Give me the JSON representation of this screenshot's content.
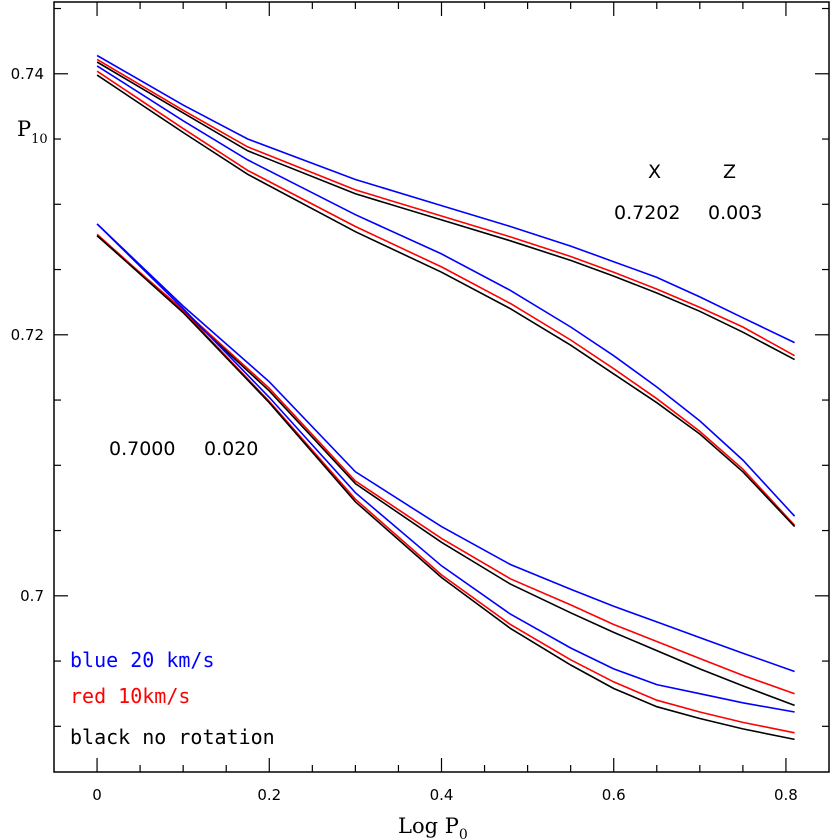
{
  "chart_data": {
    "type": "line",
    "xlabel": "Log P",
    "xlabel_sub": "0",
    "ylabel": "P",
    "ylabel_sub": "10",
    "xlim": [
      -0.05,
      0.85
    ],
    "ylim": [
      0.6865,
      0.7455
    ],
    "x_ticks": [
      "0",
      "0.2",
      "0.4",
      "0.6",
      "0.8"
    ],
    "y_ticks": [
      "0.7",
      "0.72",
      "0.74"
    ],
    "header": {
      "x": "X",
      "z": "Z"
    },
    "group_labels": [
      {
        "x": "0.7202",
        "z": "0.003"
      },
      {
        "x": "0.7000",
        "z": "0.020"
      }
    ],
    "legend": [
      {
        "text": "blue 20 km/s",
        "color": "#0000ff"
      },
      {
        "text": "red 10km/s",
        "color": "#ff0000"
      },
      {
        "text": "black no rotation",
        "color": "#000000"
      }
    ],
    "series": [
      {
        "group": "X=0.7202 Z=0.003",
        "color": "#0000ff",
        "branch": "upper",
        "x": [
          0,
          0.1,
          0.175,
          0.3,
          0.4,
          0.48,
          0.55,
          0.6,
          0.65,
          0.7,
          0.75,
          0.81
        ],
        "y": [
          0.7414,
          0.7376,
          0.735,
          0.7319,
          0.7299,
          0.7283,
          0.7268,
          0.7256,
          0.7244,
          0.7229,
          0.7213,
          0.7194
        ]
      },
      {
        "group": "X=0.7202 Z=0.003",
        "color": "#ff0000",
        "branch": "upper",
        "x": [
          0,
          0.1,
          0.175,
          0.3,
          0.4,
          0.48,
          0.55,
          0.6,
          0.65,
          0.7,
          0.75,
          0.81
        ],
        "y": [
          0.7411,
          0.7372,
          0.7344,
          0.7311,
          0.7291,
          0.7275,
          0.726,
          0.7248,
          0.7235,
          0.7221,
          0.7206,
          0.7184
        ]
      },
      {
        "group": "X=0.7202 Z=0.003",
        "color": "#000000",
        "branch": "upper",
        "x": [
          0,
          0.1,
          0.175,
          0.3,
          0.4,
          0.48,
          0.55,
          0.6,
          0.65,
          0.7,
          0.75,
          0.81
        ],
        "y": [
          0.7409,
          0.737,
          0.7341,
          0.7308,
          0.7288,
          0.7272,
          0.7257,
          0.7245,
          0.7232,
          0.7218,
          0.7202,
          0.7181
        ]
      },
      {
        "group": "X=0.7202 Z=0.003",
        "color": "#0000ff",
        "branch": "lower",
        "x": [
          0,
          0.1,
          0.175,
          0.3,
          0.4,
          0.48,
          0.55,
          0.6,
          0.65,
          0.7,
          0.75,
          0.81
        ],
        "y": [
          0.7406,
          0.7364,
          0.7334,
          0.7292,
          0.7262,
          0.7234,
          0.7206,
          0.7184,
          0.716,
          0.7134,
          0.7104,
          0.7061
        ]
      },
      {
        "group": "X=0.7202 Z=0.003",
        "color": "#ff0000",
        "branch": "lower",
        "x": [
          0,
          0.1,
          0.175,
          0.3,
          0.4,
          0.48,
          0.55,
          0.6,
          0.65,
          0.7,
          0.75,
          0.81
        ],
        "y": [
          0.7402,
          0.7358,
          0.7326,
          0.7283,
          0.7252,
          0.7224,
          0.7196,
          0.7174,
          0.7151,
          0.7126,
          0.7097,
          0.7054
        ]
      },
      {
        "group": "X=0.7202 Z=0.003",
        "color": "#000000",
        "branch": "lower",
        "x": [
          0,
          0.1,
          0.175,
          0.3,
          0.4,
          0.48,
          0.55,
          0.6,
          0.65,
          0.7,
          0.75,
          0.81
        ],
        "y": [
          0.7399,
          0.7355,
          0.7323,
          0.7279,
          0.7248,
          0.722,
          0.7192,
          0.717,
          0.7148,
          0.7124,
          0.7095,
          0.7053
        ]
      },
      {
        "group": "X=0.7000 Z=0.020",
        "color": "#0000ff",
        "branch": "upper",
        "x": [
          0,
          0.1,
          0.2,
          0.3,
          0.4,
          0.48,
          0.55,
          0.6,
          0.65,
          0.7,
          0.75,
          0.81
        ],
        "y": [
          0.7285,
          0.7222,
          0.7164,
          0.7095,
          0.7053,
          0.7024,
          0.7005,
          0.6992,
          0.698,
          0.6968,
          0.6956,
          0.6942
        ]
      },
      {
        "group": "X=0.7000 Z=0.020",
        "color": "#ff0000",
        "branch": "upper",
        "x": [
          0,
          0.1,
          0.2,
          0.3,
          0.4,
          0.48,
          0.55,
          0.6,
          0.65,
          0.7,
          0.75,
          0.81
        ],
        "y": [
          0.7276,
          0.7219,
          0.7159,
          0.7088,
          0.7044,
          0.7013,
          0.6993,
          0.6978,
          0.6965,
          0.6952,
          0.6939,
          0.6925
        ]
      },
      {
        "group": "X=0.7000 Z=0.020",
        "color": "#000000",
        "branch": "upper",
        "x": [
          0,
          0.1,
          0.2,
          0.3,
          0.4,
          0.48,
          0.55,
          0.6,
          0.65,
          0.7,
          0.75,
          0.81
        ],
        "y": [
          0.7276,
          0.7218,
          0.7157,
          0.7086,
          0.7041,
          0.7009,
          0.6987,
          0.6972,
          0.6958,
          0.6944,
          0.6931,
          0.6916
        ]
      },
      {
        "group": "X=0.7000 Z=0.020",
        "color": "#0000ff",
        "branch": "lower",
        "x": [
          0,
          0.1,
          0.2,
          0.3,
          0.4,
          0.48,
          0.55,
          0.6,
          0.65,
          0.7,
          0.75,
          0.81
        ],
        "y": [
          0.7285,
          0.722,
          0.7152,
          0.7079,
          0.7023,
          0.6986,
          0.696,
          0.6944,
          0.6932,
          0.6925,
          0.6918,
          0.6911
        ]
      },
      {
        "group": "X=0.7000 Z=0.020",
        "color": "#ff0000",
        "branch": "lower",
        "x": [
          0,
          0.1,
          0.2,
          0.3,
          0.4,
          0.48,
          0.55,
          0.6,
          0.65,
          0.7,
          0.75,
          0.81
        ],
        "y": [
          0.7277,
          0.7218,
          0.7149,
          0.7074,
          0.7016,
          0.6978,
          0.6951,
          0.6934,
          0.692,
          0.6911,
          0.6903,
          0.6895
        ]
      },
      {
        "group": "X=0.7000 Z=0.020",
        "color": "#000000",
        "branch": "lower",
        "x": [
          0,
          0.1,
          0.2,
          0.3,
          0.4,
          0.48,
          0.55,
          0.6,
          0.65,
          0.7,
          0.75,
          0.81
        ],
        "y": [
          0.7276,
          0.7217,
          0.7148,
          0.7072,
          0.7014,
          0.6975,
          0.6947,
          0.6929,
          0.6915,
          0.6906,
          0.6898,
          0.689
        ]
      }
    ]
  }
}
